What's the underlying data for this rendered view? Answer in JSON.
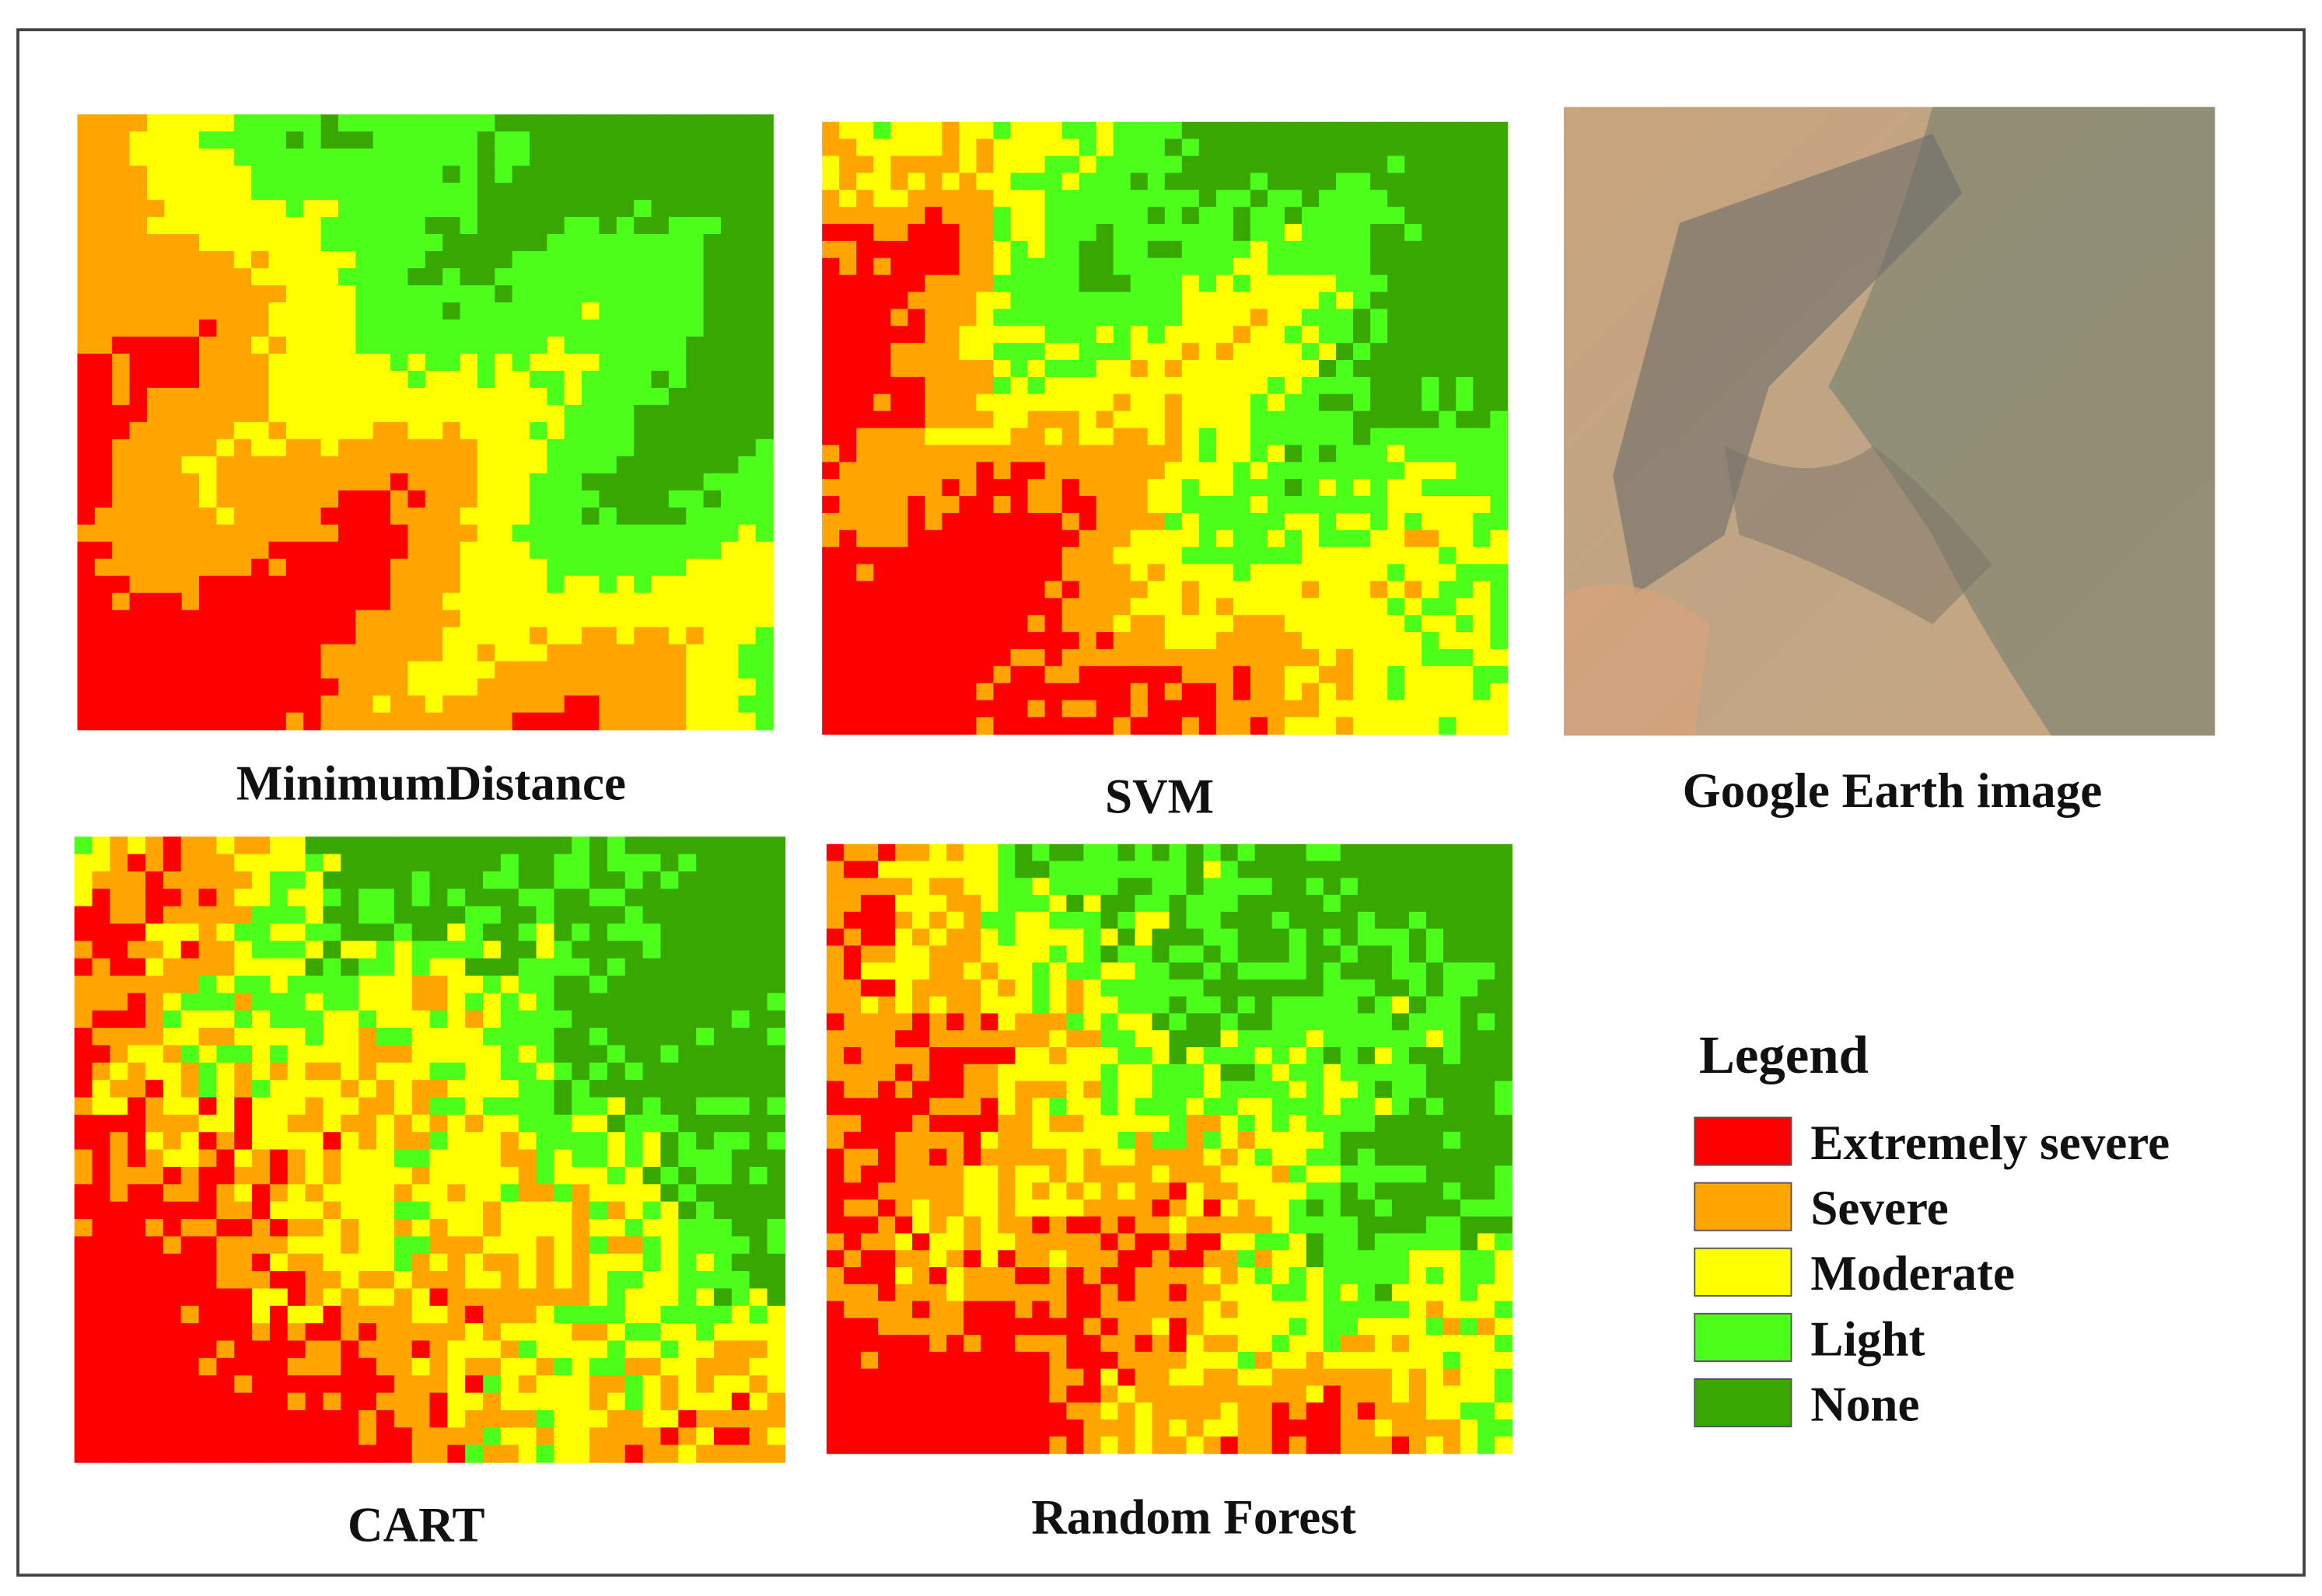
{
  "panels": [
    {
      "title": "MinimumDistance"
    },
    {
      "title": "SVM"
    },
    {
      "title": "Google Earth image"
    },
    {
      "title": "CART"
    },
    {
      "title": "Random Forest"
    }
  ],
  "legend": {
    "title": "Legend",
    "items": [
      {
        "label": "Extremely severe",
        "color": "#ff0000"
      },
      {
        "label": "Severe",
        "color": "#ffa500"
      },
      {
        "label": "Moderate",
        "color": "#ffff00"
      },
      {
        "label": "Light",
        "color": "#4cff1a"
      },
      {
        "label": "None",
        "color": "#38a800"
      }
    ]
  }
}
